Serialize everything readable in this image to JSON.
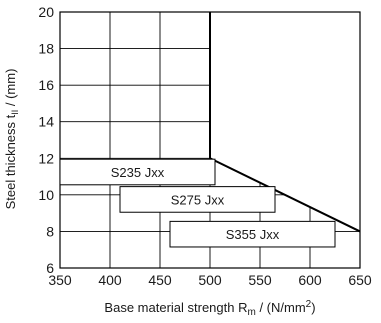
{
  "chart_data": {
    "type": "line",
    "title": "",
    "xlabel": {
      "prefix": "Base material strength R",
      "sub": "m",
      "suffix": " / (N/mm",
      "sup": "2",
      "close": ")"
    },
    "ylabel": {
      "prefix": "Steel thickness t",
      "sub": "II",
      "suffix": " / (mm)"
    },
    "xlim": [
      350,
      650
    ],
    "ylim": [
      6,
      20
    ],
    "xticks": [
      350,
      400,
      450,
      500,
      550,
      600,
      650
    ],
    "yticks": [
      6,
      8,
      10,
      12,
      14,
      16,
      18,
      20
    ],
    "grid": true,
    "boundary": {
      "x": [
        500,
        500,
        650
      ],
      "y": [
        20,
        12,
        8
      ]
    },
    "regions": [
      {
        "label": "S235 Jxx",
        "x_range": [
          350,
          505
        ],
        "y_range": [
          10.55,
          11.95
        ]
      },
      {
        "label": "S275 Jxx",
        "x_range": [
          410,
          565
        ],
        "y_range": [
          9.05,
          10.45
        ]
      },
      {
        "label": "S355 Jxx",
        "x_range": [
          460,
          625
        ],
        "y_range": [
          7.15,
          8.55
        ]
      }
    ]
  }
}
